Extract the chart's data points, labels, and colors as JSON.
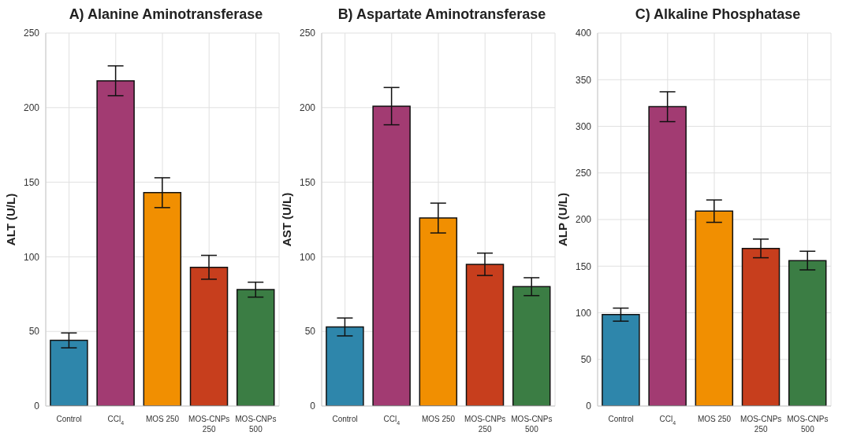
{
  "chart_data": [
    {
      "type": "bar",
      "title": "A) Alanine Aminotransferase",
      "ylabel": "ALT (U/L)",
      "categories": [
        "Control",
        "CCl$_{4}$",
        "MOS 250",
        "MOS-CNPs\n250",
        "MOS-CNPs\n500"
      ],
      "values": [
        44,
        218,
        143,
        93,
        78
      ],
      "errors": [
        5,
        10,
        10,
        8,
        5
      ],
      "colors": [
        "#2e86ab",
        "#a23b72",
        "#f18f01",
        "#c73e1d",
        "#3b7d44"
      ],
      "ylim": [
        0,
        250
      ],
      "yticks": [
        0,
        50,
        100,
        150,
        200,
        250
      ],
      "grid": true
    },
    {
      "type": "bar",
      "title": "B) Aspartate Aminotransferase",
      "ylabel": "AST (U/L)",
      "categories": [
        "Control",
        "CCl$_{4}$",
        "MOS 250",
        "MOS-CNPs\n250",
        "MOS-CNPs\n500"
      ],
      "values": [
        53,
        201,
        126,
        95,
        80
      ],
      "errors": [
        6,
        12.5,
        10,
        7.5,
        6
      ],
      "colors": [
        "#2e86ab",
        "#a23b72",
        "#f18f01",
        "#c73e1d",
        "#3b7d44"
      ],
      "ylim": [
        0,
        250
      ],
      "yticks": [
        0,
        50,
        100,
        150,
        200,
        250
      ],
      "grid": true
    },
    {
      "type": "bar",
      "title": "C) Alkaline Phosphatase",
      "ylabel": "ALP (U/L)",
      "categories": [
        "Control",
        "CCl$_{4}$",
        "MOS 250",
        "MOS-CNPs\n250",
        "MOS-CNPs\n500"
      ],
      "values": [
        98,
        321,
        209,
        169,
        156
      ],
      "errors": [
        7,
        16,
        12,
        10,
        10
      ],
      "colors": [
        "#2e86ab",
        "#a23b72",
        "#f18f01",
        "#c73e1d",
        "#3b7d44"
      ],
      "ylim": [
        0,
        400
      ],
      "yticks": [
        0,
        50,
        100,
        150,
        200,
        250,
        300,
        350,
        400
      ],
      "grid": true
    }
  ]
}
